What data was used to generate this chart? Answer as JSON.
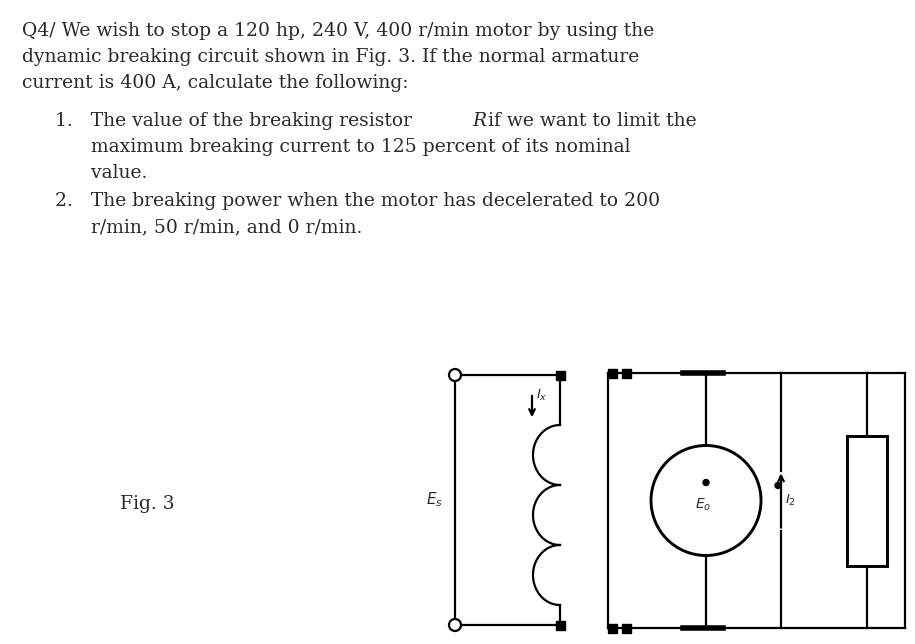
{
  "background_color": "#ffffff",
  "text_color": "#2a2a2a",
  "title_line1": "Q4/ We wish to stop a 120 hp, 240 V, 400 r/min motor by using the",
  "title_line2": "dynamic breaking circuit shown in Fig. 3. If the normal armature",
  "title_line3": "current is 400 A, calculate the following:",
  "item1_prefix": "1.   The value of the breaking resistor ",
  "item1_R": "R",
  "item1_suffix": " if we want to limit the",
  "item1_line2": "      maximum breaking current to 125 percent of its nominal",
  "item1_line3": "      value.",
  "item2_line1": "2.   The breaking power when the motor has decelerated to 200",
  "item2_line2": "      r/min, 50 r/min, and 0 r/min.",
  "fig_label": "Fig. 3",
  "font_size_main": 13.5,
  "font_family": "serif"
}
